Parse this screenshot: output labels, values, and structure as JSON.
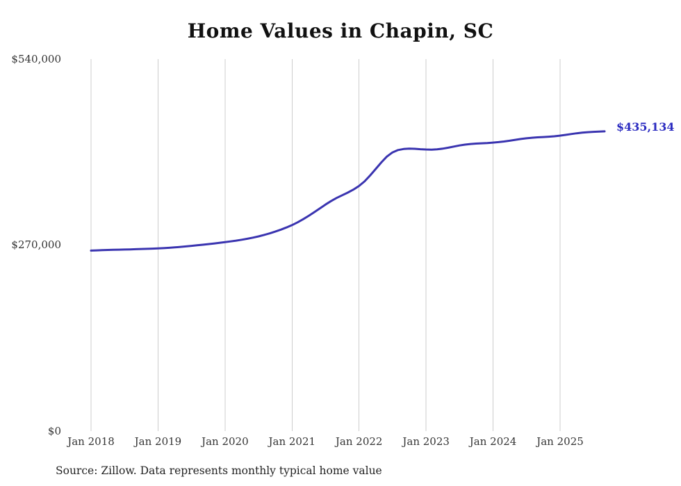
{
  "title": "Home Values in Chapin, SC",
  "end_label": "$435,134",
  "source_note": "Source: Zillow. Data represents monthly typical home value",
  "colors": {
    "line": "#3a34b0",
    "grid": "#cccccc",
    "text": "#333333",
    "accent": "#2a2ac0"
  },
  "chart_data": {
    "type": "line",
    "title": "Home Values in Chapin, SC",
    "series_name": "Monthly typical home value",
    "frequency": "monthly",
    "x_start": "Jan 2018",
    "x_end": "Sep 2025",
    "x_tick_labels": [
      "Jan 2018",
      "Jan 2019",
      "Jan 2020",
      "Jan 2021",
      "Jan 2022",
      "Jan 2023",
      "Jan 2024",
      "Jan 2025"
    ],
    "y_tick_labels": [
      "$0",
      "$270,000",
      "$540,000"
    ],
    "ylim": [
      0,
      540000
    ],
    "grid": "vertical-only",
    "legend": "none",
    "final_value": 435134,
    "values": [
      262000,
      262300,
      262600,
      262900,
      263100,
      263300,
      263500,
      263700,
      264000,
      264300,
      264600,
      264900,
      265200,
      265600,
      266100,
      266700,
      267400,
      268100,
      268900,
      269700,
      270500,
      271400,
      272300,
      273200,
      274200,
      275300,
      276500,
      277800,
      279200,
      280800,
      282600,
      284700,
      287000,
      289600,
      292400,
      295500,
      299000,
      303000,
      307500,
      312500,
      317800,
      323300,
      328800,
      333900,
      338400,
      342400,
      346200,
      350500,
      355800,
      362500,
      371000,
      380500,
      390000,
      398500,
      404500,
      408000,
      409500,
      410000,
      409800,
      409200,
      408800,
      408600,
      409000,
      410000,
      411400,
      413000,
      414600,
      415900,
      416800,
      417400,
      417800,
      418200,
      418800,
      419500,
      420400,
      421500,
      422800,
      424000,
      425000,
      425800,
      426400,
      426900,
      427400,
      428000,
      428900,
      430000,
      431200,
      432300,
      433200,
      433900,
      434400,
      434800,
      435134
    ]
  }
}
